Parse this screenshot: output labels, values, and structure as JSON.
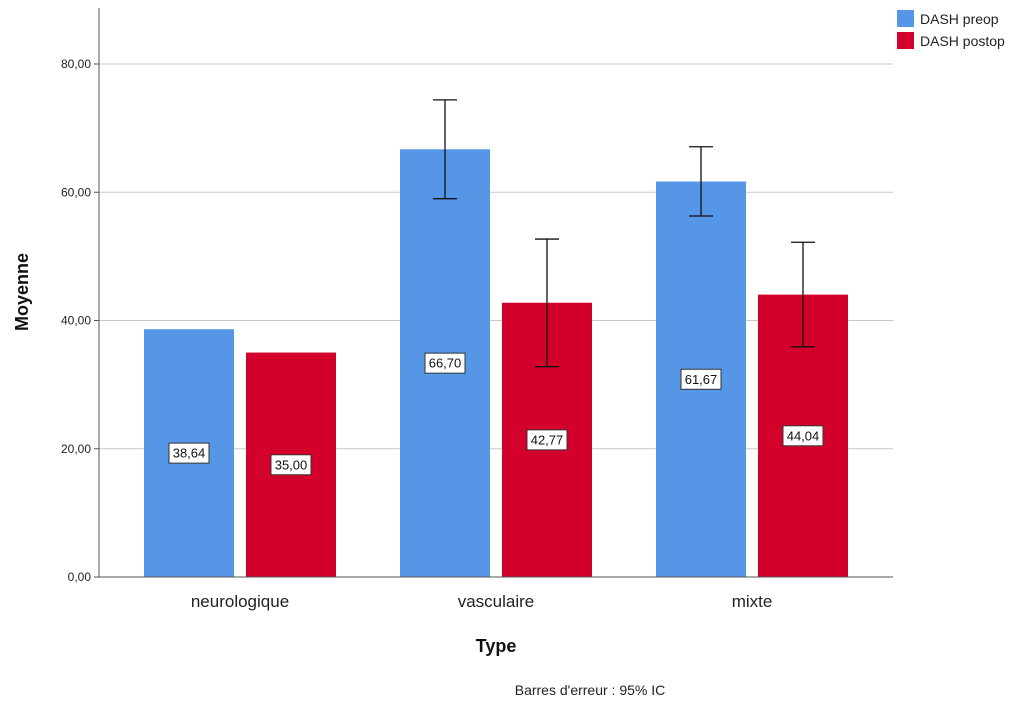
{
  "chart_data": {
    "type": "bar",
    "categories": [
      "neurologique",
      "vasculaire",
      "mixte"
    ],
    "series": [
      {
        "name": "DASH preop",
        "values": [
          38.64,
          66.7,
          61.67
        ],
        "value_labels": [
          "38,64",
          "66,70",
          "61,67"
        ],
        "error_low": [
          null,
          59.0,
          56.3
        ],
        "error_high": [
          null,
          74.4,
          67.1
        ],
        "color": "#5596E6"
      },
      {
        "name": "DASH postop",
        "values": [
          35.0,
          42.77,
          44.04
        ],
        "value_labels": [
          "35,00",
          "42,77",
          "44,04"
        ],
        "error_low": [
          null,
          32.8,
          35.9
        ],
        "error_high": [
          null,
          52.7,
          52.2
        ],
        "color": "#D3002C"
      }
    ],
    "xlabel": "Type",
    "ylabel": "Moyenne",
    "ylim": [
      0,
      90
    ],
    "yticks": [
      0,
      20,
      40,
      60,
      80
    ],
    "ytick_labels": [
      "0,00",
      "20,00",
      "40,00",
      "60,00",
      "80,00"
    ],
    "grid": true,
    "legend_position": "top-right",
    "footnote": "Barres d'erreur : 95% IC"
  }
}
